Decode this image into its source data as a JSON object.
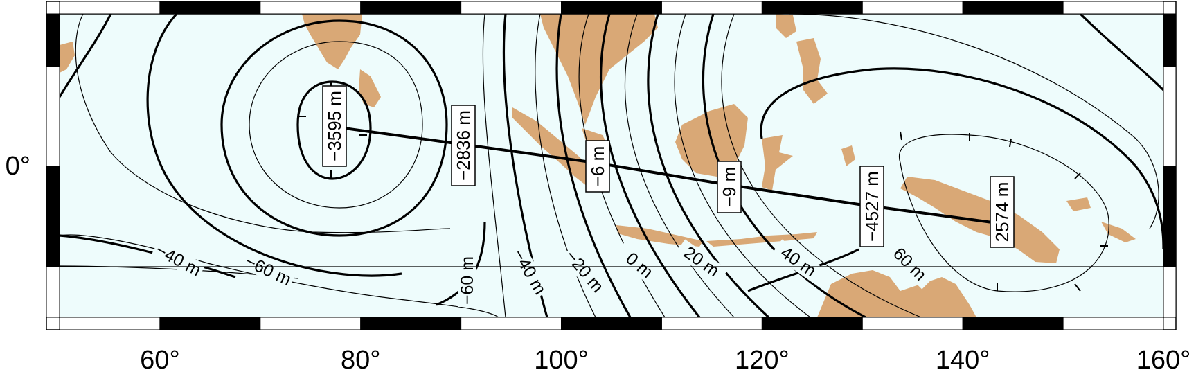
{
  "colors": {
    "ocean": "#eefcfc",
    "land": "#d9a876",
    "contour": "#000000",
    "frame": "#000000"
  },
  "map": {
    "projection": "mercator",
    "lon_range": [
      50,
      160
    ],
    "x_tick_labels": [
      "60°",
      "80°",
      "100°",
      "120°",
      "140°",
      "160°"
    ],
    "y_tick_labels": [
      "0°"
    ]
  },
  "contour_labels": [
    "−40 m",
    "−60 m",
    "−60 m",
    "−40 m",
    "−20 m",
    "0 m",
    "20 m",
    "40 m",
    "60 m"
  ],
  "profile_labels": [
    "−3595 m",
    "−2836 m",
    "−6 m",
    "−9 m",
    "−4527 m",
    "2574 m"
  ]
}
